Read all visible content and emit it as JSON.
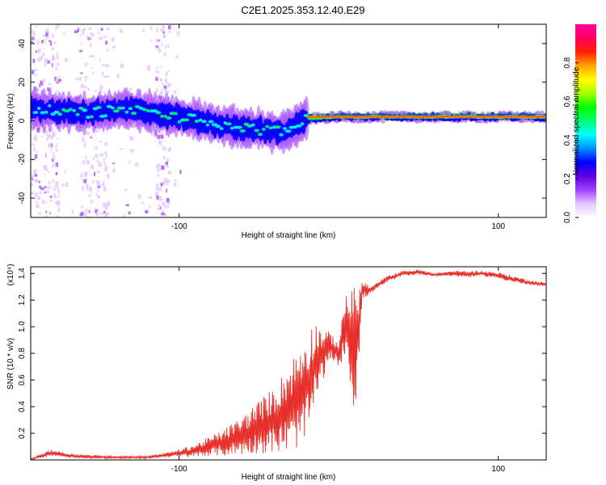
{
  "title": "C2E1.2025.353.12.40.E29",
  "chart_data": [
    {
      "type": "heatmap",
      "panel": "top",
      "title": "C2E1.2025.353.12.40.E29",
      "xlabel": "Height of straight line (km)",
      "ylabel": "Frequency (Hz)",
      "xlim": [
        -193,
        130
      ],
      "ylim": [
        -50,
        50
      ],
      "xticks": [
        -100,
        100
      ],
      "yticks": [
        -40,
        -20,
        0,
        20,
        40
      ],
      "colorbar": {
        "label": "Normalized spectral amplitude",
        "range": [
          0,
          1
        ],
        "ticks": [
          "0.0",
          "0.2",
          "0.4",
          "0.6",
          "0.8"
        ],
        "colors": [
          "#ffffff",
          "#e3c6ff",
          "#a040ff",
          "#6000e0",
          "#0000ff",
          "#0090ff",
          "#00ffff",
          "#00ff70",
          "#00ff00",
          "#aaff00",
          "#ffff00",
          "#ffa000",
          "#ff2000",
          "#ff0060",
          "#ff00a0"
        ]
      },
      "centerline": [
        {
          "x": -193,
          "y": 6
        },
        {
          "x": -160,
          "y": 4
        },
        {
          "x": -130,
          "y": 6
        },
        {
          "x": -100,
          "y": 2
        },
        {
          "x": -75,
          "y": -2
        },
        {
          "x": -55,
          "y": -4
        },
        {
          "x": -35,
          "y": -6
        },
        {
          "x": -20,
          "y": 1
        },
        {
          "x": 0,
          "y": 2
        },
        {
          "x": 50,
          "y": 2
        },
        {
          "x": 130,
          "y": 2
        }
      ]
    },
    {
      "type": "line",
      "panel": "bottom",
      "xlabel": "Height of straight line (km)",
      "ylabel": "SNR (10 * v/v)",
      "yscale_label": "(x10⁴)",
      "xlim": [
        -193,
        130
      ],
      "ylim": [
        0,
        1.45
      ],
      "xticks": [
        -100,
        100
      ],
      "yticks": [
        0.2,
        0.4,
        0.6,
        0.8,
        1.0,
        1.2,
        1.4
      ],
      "series": [
        {
          "name": "SNR",
          "color": "#e8302a",
          "x": [
            -193,
            -180,
            -170,
            -160,
            -140,
            -120,
            -110,
            -100,
            -90,
            -80,
            -70,
            -60,
            -50,
            -40,
            -35,
            -30,
            -25,
            -20,
            -15,
            -10,
            -5,
            0,
            5,
            10,
            15,
            20,
            30,
            40,
            50,
            60,
            70,
            80,
            90,
            100,
            110,
            120,
            130
          ],
          "y": [
            0.01,
            0.08,
            0.05,
            0.04,
            0.03,
            0.03,
            0.05,
            0.08,
            0.12,
            0.18,
            0.25,
            0.33,
            0.45,
            0.55,
            0.65,
            0.75,
            0.85,
            0.95,
            1.05,
            1.0,
            0.95,
            0.9,
            1.3,
            1.3,
            1.35,
            1.3,
            1.38,
            1.42,
            1.43,
            1.4,
            1.42,
            1.42,
            1.42,
            1.41,
            1.38,
            1.35,
            1.33
          ],
          "envelope_low": [
            0.0,
            0.03,
            0.02,
            0.01,
            0.01,
            0.01,
            0.02,
            0.02,
            0.02,
            0.03,
            0.03,
            0.04,
            0.05,
            0.05,
            0.05,
            0.05,
            0.1,
            0.15,
            0.4,
            0.6,
            0.75,
            0.7,
            0.8,
            0.3,
            1.2,
            1.25,
            1.33,
            1.38,
            1.39,
            1.38,
            1.38,
            1.37,
            1.38,
            1.36,
            1.33,
            1.31,
            1.3
          ]
        }
      ]
    }
  ]
}
